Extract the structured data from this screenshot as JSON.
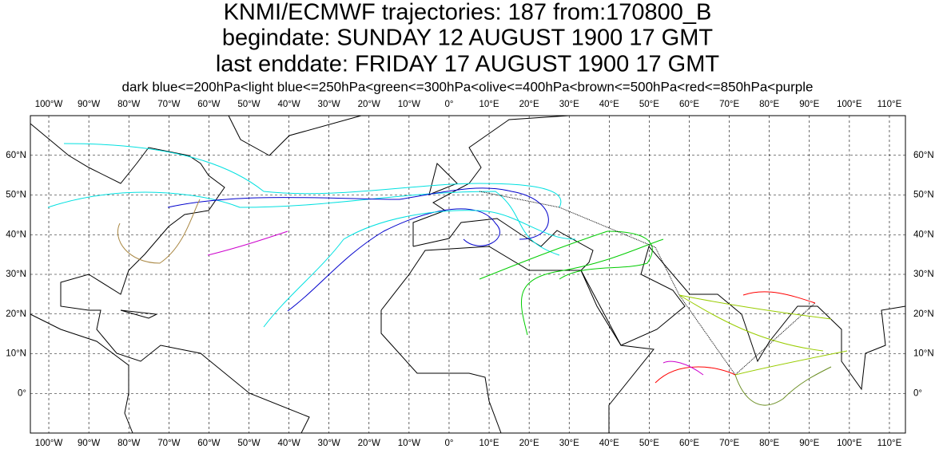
{
  "title_lines": [
    "KNMI/ECMWF trajectories:  187 from:170800_B",
    "begindate:  SUNDAY    12 AUGUST    1900 17 GMT",
    "last enddate:  FRIDAY    17 AUGUST    1900 17 GMT"
  ],
  "legend": "dark blue<=200hPa<light blue<=250hPa<green<=300hPa<olive<=400hPa<brown<=500hPa<red<=850hPa<purple",
  "map": {
    "lonlim": [
      -104.6,
      114
    ],
    "latlim": [
      -10,
      70
    ],
    "lon_ticks": [
      {
        "value": -100,
        "label": "100°W"
      },
      {
        "value": -90,
        "label": "90°W"
      },
      {
        "value": -80,
        "label": "80°W"
      },
      {
        "value": -70,
        "label": "70°W"
      },
      {
        "value": -60,
        "label": "60°W"
      },
      {
        "value": -50,
        "label": "50°W"
      },
      {
        "value": -40,
        "label": "40°W"
      },
      {
        "value": -30,
        "label": "30°W"
      },
      {
        "value": -20,
        "label": "20°W"
      },
      {
        "value": -10,
        "label": "10°W"
      },
      {
        "value": 0,
        "label": "0°"
      },
      {
        "value": 10,
        "label": "10°E"
      },
      {
        "value": 20,
        "label": "20°E"
      },
      {
        "value": 30,
        "label": "30°E"
      },
      {
        "value": 40,
        "label": "40°E"
      },
      {
        "value": 50,
        "label": "50°E"
      },
      {
        "value": 60,
        "label": "60°E"
      },
      {
        "value": 70,
        "label": "70°E"
      },
      {
        "value": 80,
        "label": "80°E"
      },
      {
        "value": 90,
        "label": "90°E"
      },
      {
        "value": 100,
        "label": "100°E"
      },
      {
        "value": 110,
        "label": "110°E"
      }
    ],
    "lat_ticks": [
      {
        "value": 0,
        "label": "0°"
      },
      {
        "value": 10,
        "label": "10°N"
      },
      {
        "value": 20,
        "label": "20°N"
      },
      {
        "value": 30,
        "label": "30°N"
      },
      {
        "value": 40,
        "label": "40°N"
      },
      {
        "value": 50,
        "label": "50°N"
      },
      {
        "value": 60,
        "label": "60°N"
      }
    ],
    "grid": true
  }
}
